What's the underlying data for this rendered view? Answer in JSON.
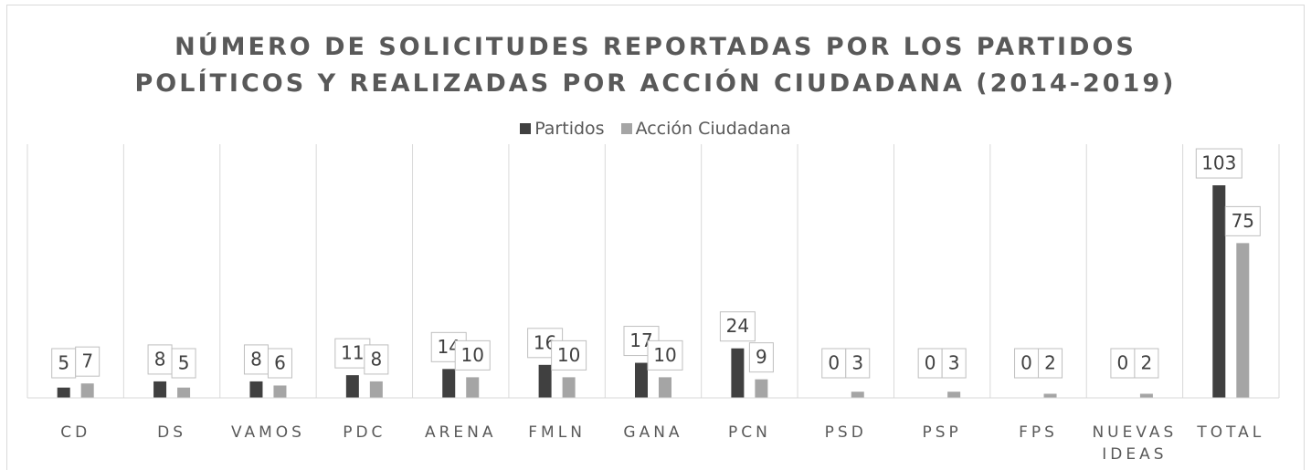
{
  "chart_data": {
    "type": "bar",
    "title": "NÚMERO DE SOLICITUDES REPORTADAS POR LOS PARTIDOS\nPOLÍTICOS Y REALIZADAS POR ACCIÓN CIUDADANA (2014-2019)",
    "categories": [
      "CD",
      "DS",
      "VAMOS",
      "PDC",
      "ARENA",
      "FMLN",
      "GANA",
      "PCN",
      "PSD",
      "PSP",
      "FPS",
      "NUEVAS IDEAS",
      "TOTAL"
    ],
    "series": [
      {
        "name": "Partidos",
        "color": "#404040",
        "values": [
          5,
          8,
          8,
          11,
          14,
          16,
          17,
          24,
          0,
          0,
          0,
          0,
          103
        ]
      },
      {
        "name": "Acción Ciudadana",
        "color": "#a5a5a5",
        "values": [
          7,
          5,
          6,
          8,
          10,
          10,
          10,
          9,
          3,
          3,
          2,
          2,
          75
        ]
      }
    ],
    "ylim": [
      0,
      120
    ],
    "grid": true,
    "legend": "top"
  }
}
